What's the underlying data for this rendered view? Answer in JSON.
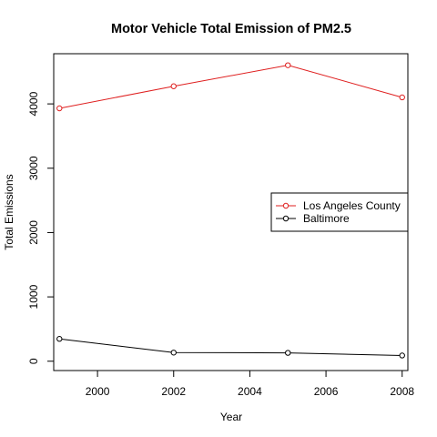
{
  "chart_data": {
    "type": "line",
    "title": "Motor Vehicle Total Emission of PM2.5",
    "xlabel": "Year",
    "ylabel": "Total Emissions",
    "xlim": [
      1998.85,
      2008.15
    ],
    "ylim": [
      -145,
      4780
    ],
    "xticks": [
      2000,
      2002,
      2004,
      2006,
      2008
    ],
    "yticks": [
      0,
      1000,
      2000,
      3000,
      4000
    ],
    "x": [
      1999,
      2002,
      2005,
      2008
    ],
    "grid": false,
    "legend_position": "right",
    "series": [
      {
        "name": "Los Angeles County",
        "color": "#DF1F1F",
        "values": [
          3931,
          4274,
          4601,
          4101
        ]
      },
      {
        "name": "Baltimore",
        "color": "#000000",
        "values": [
          347,
          134,
          130,
          89
        ]
      }
    ]
  }
}
